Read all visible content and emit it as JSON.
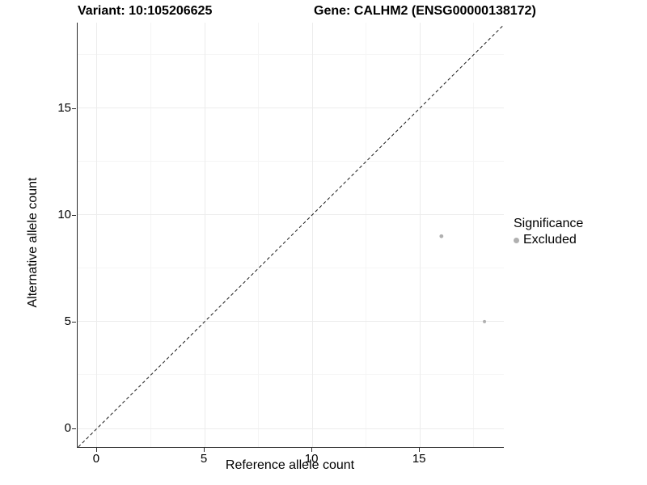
{
  "chart_data": {
    "type": "scatter",
    "title_left": "Variant: 10:105206625",
    "title_right": "Gene: CALHM2 (ENSG00000138172)",
    "xlabel": "Reference allele count",
    "ylabel": "Alternative allele count",
    "xlim": [
      -0.9,
      18.9
    ],
    "ylim": [
      -0.87,
      19.0
    ],
    "x_major_ticks": [
      0,
      5,
      10,
      15
    ],
    "y_major_ticks": [
      0,
      5,
      10,
      15
    ],
    "x_minor_ticks": [
      2.5,
      7.5,
      12.5,
      17.5
    ],
    "y_minor_ticks": [
      2.5,
      7.5,
      12.5,
      17.5
    ],
    "series": [
      {
        "name": "Excluded",
        "color": "#b0b0b0",
        "points": [
          {
            "x": 16,
            "y": 9,
            "r": 2.4
          },
          {
            "x": 18,
            "y": 5,
            "r": 2.0
          }
        ]
      }
    ],
    "reference_line": {
      "type": "identity-diagonal",
      "style": "dashed",
      "color": "#1a1a1a"
    },
    "legend": {
      "title": "Significance",
      "position": "right",
      "entries": [
        {
          "label": "Excluded",
          "color": "#b0b0b0"
        }
      ]
    },
    "grid": {
      "major_color": "#ececec",
      "minor_color": "#f5f5f5"
    },
    "axis_line_color": "#2b2b2b"
  }
}
